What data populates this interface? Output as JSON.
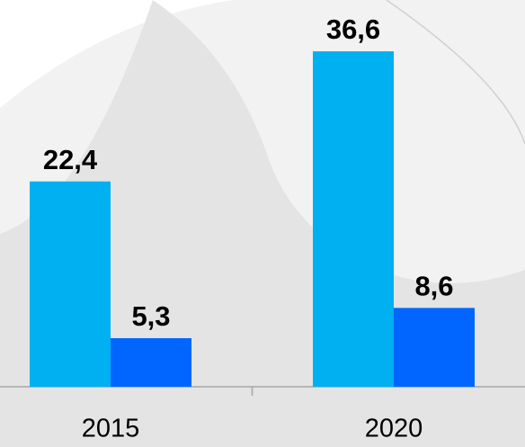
{
  "chart_data": {
    "type": "bar",
    "categories": [
      "2015",
      "2020"
    ],
    "series": [
      {
        "color": "#00b0f0",
        "values": [
          22.4,
          36.6
        ],
        "value_labels": [
          "22,4",
          "36,6"
        ]
      },
      {
        "color": "#0066ff",
        "values": [
          5.3,
          8.6
        ],
        "value_labels": [
          "5,3",
          "8,6"
        ]
      }
    ],
    "ylim": [
      0,
      42.2
    ]
  }
}
